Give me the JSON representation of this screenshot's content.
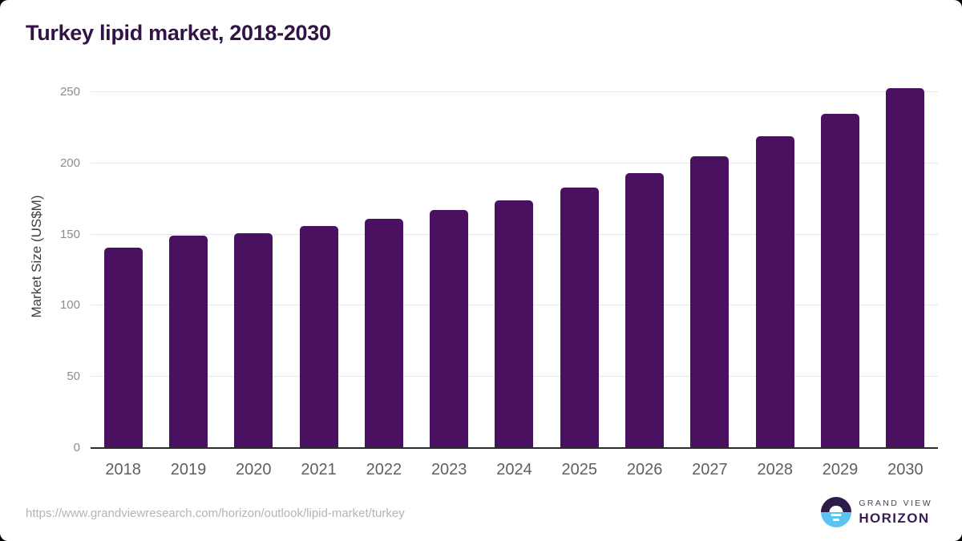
{
  "title": "Turkey lipid market, 2018-2030",
  "chart_data": {
    "type": "bar",
    "categories": [
      "2018",
      "2019",
      "2020",
      "2021",
      "2022",
      "2023",
      "2024",
      "2025",
      "2026",
      "2027",
      "2028",
      "2029",
      "2030"
    ],
    "values": [
      141,
      149,
      151,
      156,
      161,
      167,
      174,
      183,
      193,
      205,
      219,
      235,
      253
    ],
    "title": "Turkey lipid market, 2018-2030",
    "xlabel": "",
    "ylabel": "Market Size (US$M)",
    "ylim": [
      0,
      250
    ],
    "yticks": [
      0,
      50,
      100,
      150,
      200,
      250
    ],
    "grid": true,
    "legend": "none",
    "bar_color": "#4a1160"
  },
  "footer": {
    "source_url": "https://www.grandviewresearch.com/horizon/outlook/lipid-market/turkey",
    "logo": {
      "line1": "GRAND VIEW",
      "line2": "HORIZON"
    }
  },
  "colors": {
    "title": "#311345",
    "bar": "#4a1160",
    "gridline": "#e7e7e7",
    "axis_baseline": "#2b2b2b",
    "y_tick_label": "#8c8c8c",
    "x_tick_label": "#5f5f5f",
    "source_url": "#b5b5b5",
    "logo_purple": "#2d1b49",
    "logo_blue": "#5cc3f0"
  }
}
